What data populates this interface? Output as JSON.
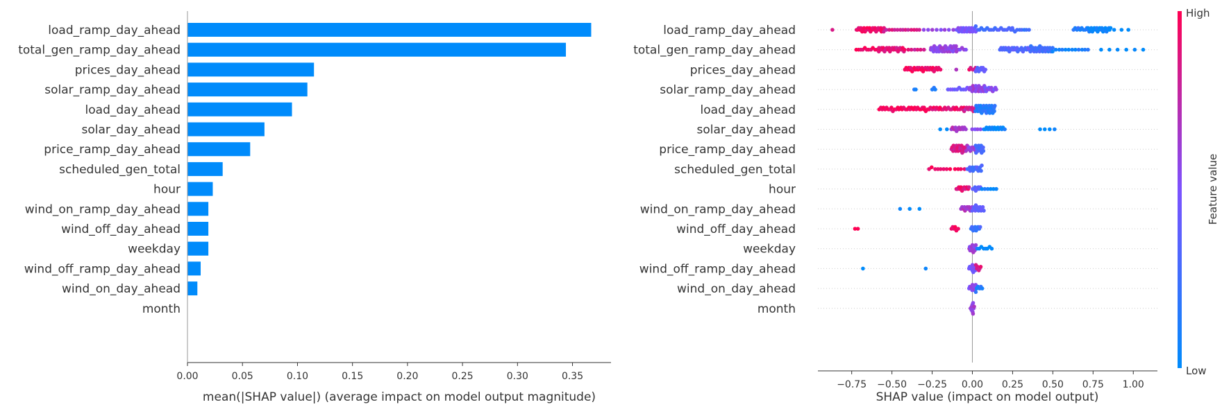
{
  "chart_data": [
    {
      "type": "bar",
      "orientation": "horizontal",
      "xlabel": "mean(|SHAP value|) (average impact on model output magnitude)",
      "xlim": [
        0,
        0.385
      ],
      "xticks": [
        0.0,
        0.05,
        0.1,
        0.15,
        0.2,
        0.25,
        0.3,
        0.35
      ],
      "xtick_labels": [
        "0.00",
        "0.05",
        "0.10",
        "0.15",
        "0.20",
        "0.25",
        "0.30",
        "0.35"
      ],
      "bar_color": "#008bfb",
      "categories": [
        "load_ramp_day_ahead",
        "total_gen_ramp_day_ahead",
        "prices_day_ahead",
        "solar_ramp_day_ahead",
        "load_day_ahead",
        "solar_day_ahead",
        "price_ramp_day_ahead",
        "scheduled_gen_total",
        "hour",
        "wind_on_ramp_day_ahead",
        "wind_off_day_ahead",
        "weekday",
        "wind_off_ramp_day_ahead",
        "wind_on_day_ahead",
        "month"
      ],
      "values": [
        0.367,
        0.344,
        0.115,
        0.109,
        0.095,
        0.07,
        0.057,
        0.032,
        0.023,
        0.019,
        0.019,
        0.019,
        0.012,
        0.009,
        0.0
      ]
    },
    {
      "type": "scatter",
      "subtype": "beeswarm",
      "xlabel": "SHAP value (impact on model output)",
      "xlim": [
        -0.96,
        1.15
      ],
      "xticks": [
        -0.75,
        -0.5,
        -0.25,
        0.0,
        0.25,
        0.5,
        0.75,
        1.0
      ],
      "xtick_labels": [
        "−0.75",
        "−0.50",
        "−0.25",
        "0.00",
        "0.25",
        "0.50",
        "0.75",
        "1.00"
      ],
      "colorbar": {
        "label": "Feature value",
        "high": "High",
        "low": "Low",
        "low_color": "#008bfb",
        "high_color": "#ff0052"
      },
      "features": [
        {
          "name": "load_ramp_day_ahead",
          "clusters": [
            [
              -0.87,
              -0.86,
              1,
              0.85
            ],
            [
              -0.72,
              -0.55,
              26,
              0.95
            ],
            [
              -0.55,
              -0.33,
              14,
              0.82
            ],
            [
              -0.3,
              -0.12,
              8,
              0.6
            ],
            [
              -0.1,
              0.02,
              22,
              0.5
            ],
            [
              0.02,
              0.25,
              20,
              0.3
            ],
            [
              0.25,
              0.35,
              8,
              0.25
            ],
            [
              0.63,
              0.72,
              10,
              0.15
            ],
            [
              0.72,
              0.86,
              22,
              0.05
            ],
            [
              0.88,
              0.97,
              3,
              0.0
            ]
          ]
        },
        {
          "name": "total_gen_ramp_day_ahead",
          "clusters": [
            [
              -0.72,
              -0.58,
              12,
              0.95
            ],
            [
              -0.58,
              -0.42,
              24,
              0.9
            ],
            [
              -0.4,
              -0.3,
              6,
              0.85
            ],
            [
              -0.26,
              -0.1,
              34,
              0.6
            ],
            [
              -0.1,
              -0.04,
              6,
              0.55
            ],
            [
              0.17,
              0.36,
              26,
              0.35
            ],
            [
              0.36,
              0.5,
              26,
              0.25
            ],
            [
              0.5,
              0.72,
              12,
              0.1
            ],
            [
              0.8,
              1.06,
              6,
              0.0
            ]
          ]
        },
        {
          "name": "prices_day_ahead",
          "clusters": [
            [
              -0.42,
              -0.2,
              30,
              0.95
            ],
            [
              -0.1,
              -0.1,
              1,
              0.7
            ],
            [
              -0.02,
              0.02,
              5,
              0.9
            ],
            [
              0.02,
              0.08,
              10,
              0.35
            ]
          ]
        },
        {
          "name": "solar_ramp_day_ahead",
          "clusters": [
            [
              -0.36,
              -0.35,
              2,
              0.1
            ],
            [
              -0.25,
              -0.23,
              3,
              0.15
            ],
            [
              -0.15,
              -0.03,
              10,
              0.45
            ],
            [
              -0.02,
              0.08,
              22,
              0.6
            ],
            [
              0.08,
              0.15,
              10,
              0.5
            ]
          ]
        },
        {
          "name": "load_day_ahead",
          "clusters": [
            [
              -0.58,
              -0.3,
              30,
              0.97
            ],
            [
              -0.3,
              -0.05,
              26,
              0.92
            ],
            [
              -0.05,
              0.02,
              10,
              0.8
            ],
            [
              0.02,
              0.14,
              34,
              0.15
            ]
          ]
        },
        {
          "name": "solar_day_ahead",
          "clusters": [
            [
              -0.2,
              -0.16,
              2,
              0.0
            ],
            [
              -0.13,
              -0.04,
              12,
              0.7
            ],
            [
              0.0,
              0.05,
              4,
              0.5
            ],
            [
              0.07,
              0.2,
              16,
              0.05
            ],
            [
              0.42,
              0.51,
              4,
              0.0
            ]
          ]
        },
        {
          "name": "price_ramp_day_ahead",
          "clusters": [
            [
              -0.13,
              -0.04,
              22,
              0.85
            ],
            [
              -0.04,
              0.02,
              10,
              0.6
            ],
            [
              0.02,
              0.07,
              14,
              0.3
            ]
          ]
        },
        {
          "name": "scheduled_gen_total",
          "clusters": [
            [
              -0.27,
              -0.14,
              8,
              0.97
            ],
            [
              -0.11,
              -0.05,
              4,
              0.95
            ],
            [
              -0.03,
              0.06,
              16,
              0.3
            ]
          ]
        },
        {
          "name": "hour",
          "clusters": [
            [
              -0.1,
              -0.02,
              12,
              0.9
            ],
            [
              0.0,
              0.05,
              8,
              0.4
            ],
            [
              0.06,
              0.15,
              6,
              0.05
            ]
          ]
        },
        {
          "name": "wind_on_ramp_day_ahead",
          "clusters": [
            [
              -0.45,
              -0.33,
              3,
              0.05
            ],
            [
              -0.07,
              0.0,
              12,
              0.65
            ],
            [
              0.0,
              0.07,
              14,
              0.4
            ]
          ]
        },
        {
          "name": "wind_off_day_ahead",
          "clusters": [
            [
              -0.73,
              -0.71,
              2,
              1.0
            ],
            [
              -0.13,
              -0.09,
              6,
              0.95
            ],
            [
              -0.01,
              0.05,
              10,
              0.25
            ]
          ]
        },
        {
          "name": "weekday",
          "clusters": [
            [
              -0.02,
              0.02,
              12,
              0.6
            ],
            [
              0.03,
              0.12,
              8,
              0.05
            ]
          ]
        },
        {
          "name": "wind_off_ramp_day_ahead",
          "clusters": [
            [
              -0.68,
              -0.68,
              1,
              0.0
            ],
            [
              -0.29,
              -0.29,
              1,
              0.05
            ],
            [
              -0.02,
              0.02,
              10,
              0.5
            ],
            [
              0.02,
              0.05,
              6,
              0.85
            ]
          ]
        },
        {
          "name": "wind_on_day_ahead",
          "clusters": [
            [
              -0.02,
              0.02,
              10,
              0.55
            ],
            [
              0.02,
              0.06,
              6,
              0.15
            ]
          ]
        },
        {
          "name": "month",
          "clusters": [
            [
              -0.01,
              0.01,
              10,
              0.6
            ]
          ]
        }
      ]
    }
  ]
}
